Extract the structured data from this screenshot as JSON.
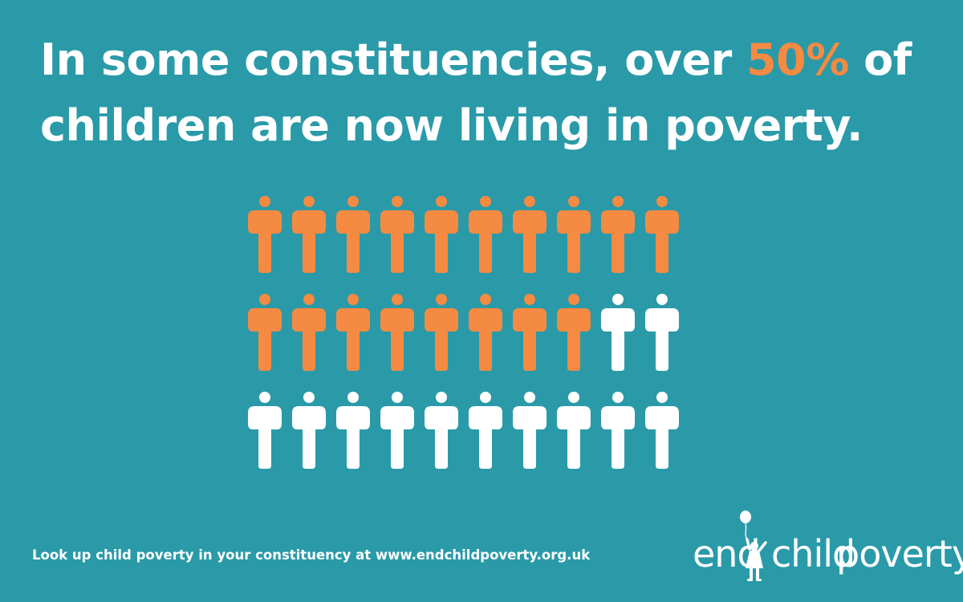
{
  "headline": {
    "line1_before": "In some constituencies, over ",
    "line1_highlight": "50%",
    "line1_after": " of",
    "line2": "children are now living in poverty."
  },
  "pictogram": {
    "rows": 3,
    "columns": 10,
    "highlighted_count": 18,
    "total_count": 30
  },
  "footer": {
    "text": "Look up child poverty in your constituency at www.endchildpoverty.org.uk"
  },
  "logo": {
    "word1": "end",
    "word2": "child",
    "word3": "poverty",
    "icon": "child-with-balloon-icon"
  },
  "colors": {
    "background": "#2a9aa8",
    "highlight": "#f58a42",
    "text": "#ffffff"
  }
}
